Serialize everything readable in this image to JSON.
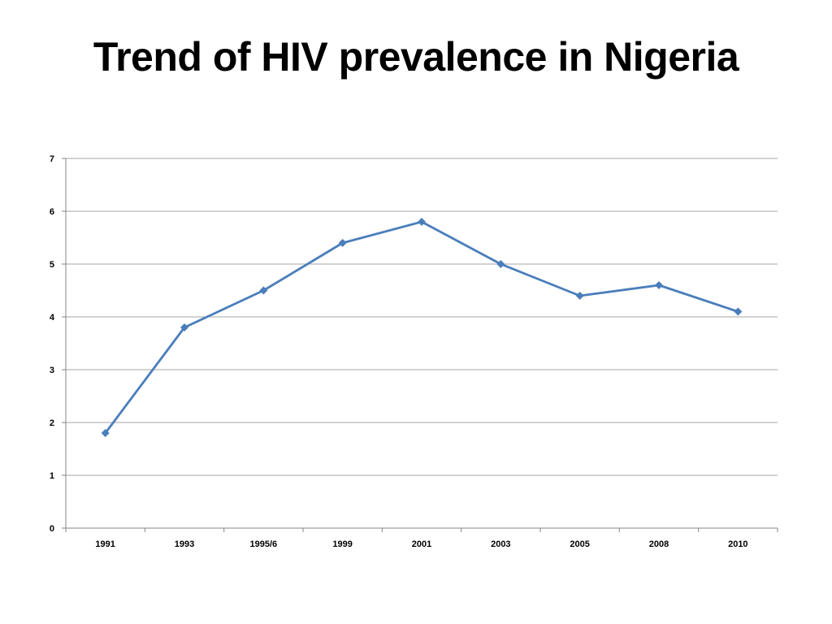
{
  "slide": {
    "title": "Trend of HIV prevalence in Nigeria"
  },
  "colors": {
    "series_line": "#4a7ebb",
    "gridline": "#a6a6a6",
    "axis": "#868686",
    "text": "#000000",
    "background": "#ffffff"
  },
  "chart_data": {
    "type": "line",
    "title": "",
    "xlabel": "",
    "ylabel": "",
    "categories": [
      "1991",
      "1993",
      "1995/6",
      "1999",
      "2001",
      "2003",
      "2005",
      "2008",
      "2010"
    ],
    "series": [
      {
        "values": [
          1.8,
          3.8,
          4.5,
          5.4,
          5.8,
          5.0,
          4.4,
          4.6,
          4.1
        ],
        "marker": "diamond",
        "color": "#4a7ebb"
      }
    ],
    "ylim": [
      0,
      7
    ],
    "yticks": [
      0,
      1,
      2,
      3,
      4,
      5,
      6,
      7
    ],
    "grid": true,
    "legend": "none"
  }
}
